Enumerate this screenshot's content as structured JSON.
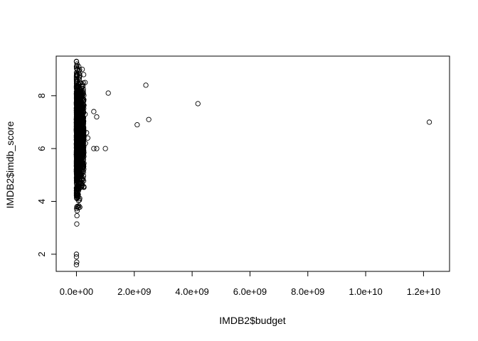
{
  "chart_data": {
    "type": "scatter",
    "title": "",
    "xlabel": "IMDB2$budget",
    "ylabel": "IMDB2$imdb_score",
    "xlim": [
      -700000000,
      12900000000
    ],
    "ylim": [
      1.35,
      9.5
    ],
    "grid": false,
    "legend": "none",
    "x_ticks": [
      0,
      2000000000,
      4000000000,
      6000000000,
      8000000000,
      10000000000,
      12000000000
    ],
    "x_tick_labels": [
      "0.0e+00",
      "2.0e+09",
      "4.0e+09",
      "6.0e+09",
      "8.0e+09",
      "1.0e+10",
      "1.2e+10"
    ],
    "y_ticks": [
      2,
      4,
      6,
      8
    ],
    "y_tick_labels": [
      "2",
      "4",
      "6",
      "8"
    ],
    "points_outliers": [
      {
        "x": 12200000000,
        "y": 7.0
      },
      {
        "x": 4200000000,
        "y": 7.7
      },
      {
        "x": 2500000000,
        "y": 7.1
      },
      {
        "x": 2400000000,
        "y": 8.4
      },
      {
        "x": 2100000000,
        "y": 6.9
      },
      {
        "x": 1100000000,
        "y": 8.1
      },
      {
        "x": 1000000000,
        "y": 6.0
      },
      {
        "x": 700000000,
        "y": 7.2
      },
      {
        "x": 700000000,
        "y": 6.0
      },
      {
        "x": 600000000,
        "y": 7.4
      },
      {
        "x": 600000000,
        "y": 6.0
      },
      {
        "x": 390000000,
        "y": 6.4
      },
      {
        "x": 350000000,
        "y": 6.6
      },
      {
        "x": 300000000,
        "y": 8.5
      },
      {
        "x": 250000000,
        "y": 6.8
      },
      {
        "x": 250000000,
        "y": 8.8
      },
      {
        "x": 200000000,
        "y": 9.0
      },
      {
        "x": 300000000,
        "y": 7.3
      },
      {
        "x": 310000000,
        "y": 6.2
      }
    ],
    "points_cluster": {
      "x_min": 0,
      "x_max": 260000000,
      "y_min": 1.6,
      "y_max": 9.3,
      "y_center": 6.5,
      "n": 1400
    }
  }
}
